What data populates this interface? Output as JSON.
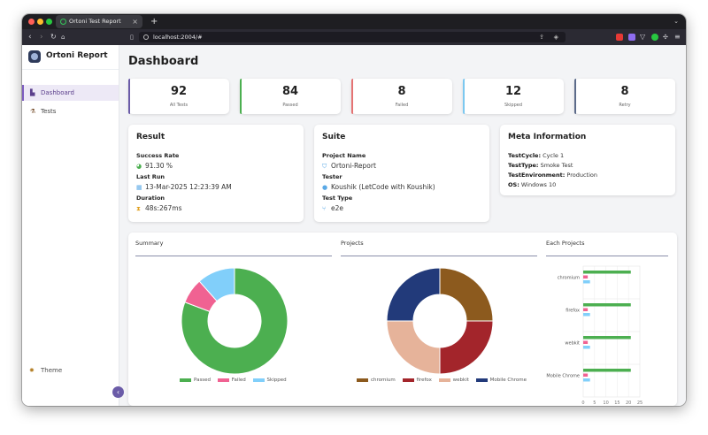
{
  "browser": {
    "tab_title": "Ortoni Test Report",
    "new_tab_label": "+",
    "url": "localhost:2004/#"
  },
  "sidebar": {
    "brand": "Ortoni Report",
    "items": [
      {
        "label": "Dashboard",
        "icon": "chart-icon",
        "active": true
      },
      {
        "label": "Tests",
        "icon": "flask-icon",
        "active": false
      }
    ],
    "theme_label": "Theme",
    "collapse_label": "‹"
  },
  "page": {
    "title": "Dashboard"
  },
  "stats": [
    {
      "value": "92",
      "label": "All Tests",
      "color": "#6b5ca8"
    },
    {
      "value": "84",
      "label": "Passed",
      "color": "#4caf50"
    },
    {
      "value": "8",
      "label": "Failed",
      "color": "#e57373"
    },
    {
      "value": "12",
      "label": "Skipped",
      "color": "#7cc8f0"
    },
    {
      "value": "8",
      "label": "Retry",
      "color": "#5c6b8a"
    }
  ],
  "result": {
    "title": "Result",
    "success_label": "Success Rate",
    "success_value": "91.30 %",
    "last_run_label": "Last Run",
    "last_run_value": "13-Mar-2025 12:23:39 AM",
    "duration_label": "Duration",
    "duration_value": "48s:267ms"
  },
  "suite": {
    "title": "Suite",
    "project_label": "Project Name",
    "project_value": "Ortoni-Report",
    "tester_label": "Tester",
    "tester_value": "Koushik (LetCode with Koushik)",
    "type_label": "Test Type",
    "type_value": "e2e"
  },
  "meta": {
    "title": "Meta Information",
    "rows": [
      {
        "key": "TestCycle:",
        "value": "Cycle 1"
      },
      {
        "key": "TestType:",
        "value": "Smoke Test"
      },
      {
        "key": "TestEnvironment:",
        "value": "Production"
      },
      {
        "key": "OS:",
        "value": "Windows 10"
      }
    ]
  },
  "charts_titles": {
    "summary": "Summary",
    "projects": "Projects",
    "each": "Each Projects"
  },
  "chart_data": [
    {
      "type": "pie",
      "title": "Summary",
      "labels": [
        "Passed",
        "Failed",
        "Skipped"
      ],
      "values": [
        84,
        8,
        12
      ],
      "colors": [
        "#4caf50",
        "#f06292",
        "#81cffa"
      ]
    },
    {
      "type": "pie",
      "title": "Projects",
      "labels": [
        "chromium",
        "firefox",
        "webkit",
        "Mobile Chrome"
      ],
      "values": [
        23,
        23,
        23,
        23
      ],
      "colors": [
        "#8c5a1e",
        "#a3252b",
        "#e6b39a",
        "#223a7a"
      ]
    },
    {
      "type": "bar",
      "title": "Each Projects",
      "orientation": "horizontal",
      "categories": [
        "chromium",
        "firefox",
        "webkit",
        "Mobile Chrome"
      ],
      "series": [
        {
          "name": "Passed",
          "values": [
            21,
            21,
            21,
            21
          ],
          "color": "#4caf50"
        },
        {
          "name": "Failed",
          "values": [
            2,
            2,
            2,
            2
          ],
          "color": "#f06292"
        },
        {
          "name": "Skipped",
          "values": [
            3,
            3,
            3,
            3
          ],
          "color": "#81cffa"
        }
      ],
      "xticks": [
        "0",
        "5",
        "10",
        "15",
        "20",
        "25"
      ],
      "xlim": [
        0,
        25
      ]
    }
  ]
}
